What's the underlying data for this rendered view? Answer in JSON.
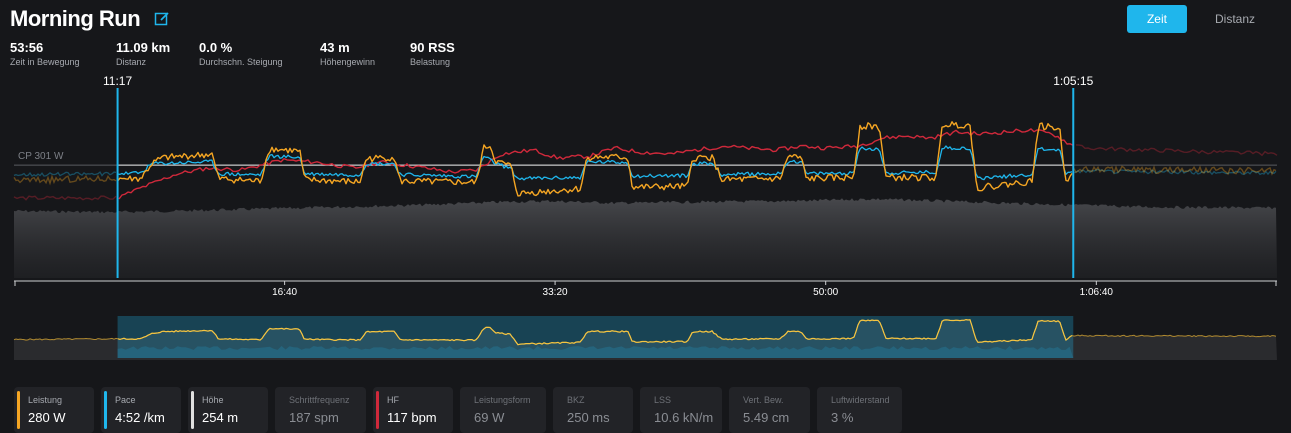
{
  "header": {
    "title": "Morning Run",
    "toggle": {
      "time_label": "Zeit",
      "distance_label": "Distanz"
    }
  },
  "stats": [
    {
      "value": "53:56",
      "label": "Zeit in Bewegung"
    },
    {
      "value": "11.09 km",
      "label": "Distanz"
    },
    {
      "value": "0.0 %",
      "label": "Durchschn. Steigung"
    },
    {
      "value": "43 m",
      "label": "Höhengewinn"
    },
    {
      "value": "90 RSS",
      "label": "Belastung"
    }
  ],
  "chart_data": {
    "type": "line",
    "x_unit": "elapsed time (min)",
    "x_range": [
      0,
      77.8
    ],
    "x_ticks": [
      {
        "value": 16.67,
        "label": "16:40"
      },
      {
        "value": 33.33,
        "label": "33:20"
      },
      {
        "value": 50.0,
        "label": "50:00"
      },
      {
        "value": 66.67,
        "label": "1:06:40"
      }
    ],
    "selection": {
      "start": 6.38,
      "end": 65.25,
      "start_label": "11:17",
      "end_label": "1:05:15"
    },
    "reference_line": {
      "label": "CP 301 W",
      "value": 301
    },
    "power_range_W": [
      0,
      480
    ],
    "series": [
      {
        "name": "Leistung",
        "color": "#f5a623",
        "unit": "W",
        "points": [
          [
            0,
            260
          ],
          [
            6.38,
            265
          ],
          [
            7.8,
            265
          ],
          [
            8.5,
            305
          ],
          [
            9.1,
            320
          ],
          [
            10.5,
            325
          ],
          [
            12.2,
            330
          ],
          [
            12.6,
            265
          ],
          [
            15.2,
            258
          ],
          [
            15.7,
            345
          ],
          [
            17.6,
            338
          ],
          [
            17.9,
            262
          ],
          [
            21.3,
            256
          ],
          [
            21.7,
            318
          ],
          [
            23.4,
            322
          ],
          [
            23.8,
            258
          ],
          [
            28.5,
            255
          ],
          [
            28.9,
            345
          ],
          [
            29.3,
            355
          ],
          [
            29.7,
            310
          ],
          [
            30.6,
            300
          ],
          [
            31.0,
            225
          ],
          [
            34.9,
            238
          ],
          [
            35.3,
            322
          ],
          [
            37.8,
            322
          ],
          [
            38.1,
            242
          ],
          [
            41.5,
            244
          ],
          [
            41.8,
            320
          ],
          [
            43.0,
            322
          ],
          [
            43.6,
            262
          ],
          [
            47.2,
            265
          ],
          [
            47.7,
            325
          ],
          [
            48.5,
            320
          ],
          [
            48.8,
            265
          ],
          [
            51.7,
            268
          ],
          [
            52.1,
            405
          ],
          [
            53.3,
            405
          ],
          [
            53.7,
            268
          ],
          [
            56.8,
            268
          ],
          [
            57.2,
            410
          ],
          [
            58.9,
            408
          ],
          [
            59.3,
            240
          ],
          [
            62.7,
            258
          ],
          [
            63.1,
            405
          ],
          [
            64.4,
            400
          ],
          [
            64.8,
            255
          ],
          [
            65.2,
            290
          ],
          [
            77.8,
            285
          ]
        ]
      },
      {
        "name": "Pace",
        "color": "#1fb6ec",
        "unit": "min/km",
        "points": [
          [
            0,
            276
          ],
          [
            6.38,
            278
          ],
          [
            7.8,
            280
          ],
          [
            8.5,
            305
          ],
          [
            12.2,
            310
          ],
          [
            12.6,
            278
          ],
          [
            15.2,
            275
          ],
          [
            15.7,
            325
          ],
          [
            17.6,
            322
          ],
          [
            17.9,
            278
          ],
          [
            21.3,
            275
          ],
          [
            21.7,
            305
          ],
          [
            23.4,
            305
          ],
          [
            23.8,
            276
          ],
          [
            28.5,
            270
          ],
          [
            28.9,
            325
          ],
          [
            29.7,
            305
          ],
          [
            30.6,
            292
          ],
          [
            31.0,
            265
          ],
          [
            34.9,
            268
          ],
          [
            35.3,
            310
          ],
          [
            37.8,
            308
          ],
          [
            38.1,
            272
          ],
          [
            41.5,
            273
          ],
          [
            41.8,
            305
          ],
          [
            43.0,
            306
          ],
          [
            43.6,
            276
          ],
          [
            47.2,
            278
          ],
          [
            47.7,
            312
          ],
          [
            48.5,
            310
          ],
          [
            48.8,
            278
          ],
          [
            51.7,
            280
          ],
          [
            52.1,
            345
          ],
          [
            53.3,
            345
          ],
          [
            53.7,
            280
          ],
          [
            56.8,
            282
          ],
          [
            57.2,
            348
          ],
          [
            58.9,
            346
          ],
          [
            59.3,
            266
          ],
          [
            62.7,
            276
          ],
          [
            63.1,
            345
          ],
          [
            64.4,
            342
          ],
          [
            64.8,
            275
          ],
          [
            65.2,
            285
          ],
          [
            77.8,
            280
          ]
        ]
      },
      {
        "name": "HF",
        "color": "#d0293b",
        "unit": "bpm",
        "points": [
          [
            0,
            100
          ],
          [
            6.38,
            100
          ],
          [
            7.8,
            105
          ],
          [
            10.0,
            112
          ],
          [
            12.0,
            115
          ],
          [
            14.0,
            114
          ],
          [
            16.5,
            119
          ],
          [
            18.5,
            118
          ],
          [
            21.0,
            115
          ],
          [
            22.5,
            118
          ],
          [
            24.5,
            116
          ],
          [
            27.0,
            113
          ],
          [
            28.5,
            114
          ],
          [
            30.0,
            122
          ],
          [
            32.0,
            124
          ],
          [
            33.5,
            120
          ],
          [
            35.5,
            121
          ],
          [
            37.0,
            125
          ],
          [
            38.5,
            123
          ],
          [
            40.5,
            122
          ],
          [
            42.0,
            124
          ],
          [
            43.8,
            126
          ],
          [
            45.0,
            125
          ],
          [
            47.0,
            124
          ],
          [
            48.5,
            126
          ],
          [
            50.0,
            125
          ],
          [
            52.0,
            126
          ],
          [
            53.5,
            130
          ],
          [
            55.0,
            131
          ],
          [
            56.5,
            130
          ],
          [
            58.0,
            133
          ],
          [
            59.5,
            132
          ],
          [
            61.0,
            133
          ],
          [
            62.5,
            134
          ],
          [
            64.0,
            132
          ],
          [
            65.25,
            126
          ],
          [
            66.0,
            125
          ],
          [
            77.8,
            122
          ]
        ]
      },
      {
        "name": "Höhe",
        "color": "#e0e0e0",
        "unit": "m",
        "points": [
          [
            0,
            244
          ],
          [
            5.0,
            243
          ],
          [
            6.38,
            243
          ],
          [
            10.0,
            244
          ],
          [
            15.0,
            246
          ],
          [
            20.0,
            248
          ],
          [
            25.0,
            250
          ],
          [
            30.0,
            253
          ],
          [
            33.0,
            254
          ],
          [
            37.0,
            252
          ],
          [
            42.0,
            253
          ],
          [
            48.0,
            254
          ],
          [
            53.0,
            256
          ],
          [
            57.0,
            254
          ],
          [
            61.0,
            252
          ],
          [
            65.25,
            250
          ],
          [
            70.0,
            248
          ],
          [
            77.8,
            247
          ]
        ]
      }
    ]
  },
  "metrics": [
    {
      "label": "Leistung",
      "value": "280 W",
      "color": "#f5a623"
    },
    {
      "label": "Pace",
      "value": "4:52 /km",
      "color": "#1fb6ec"
    },
    {
      "label": "Höhe",
      "value": "254 m",
      "color": "#e0e0e0"
    },
    {
      "label": "Schrittfrequenz",
      "value": "187 spm",
      "color": ""
    },
    {
      "label": "HF",
      "value": "117 bpm",
      "color": "#d0293b"
    },
    {
      "label": "Leistungsform",
      "value": "69 W",
      "color": ""
    },
    {
      "label": "BKZ",
      "value": "250 ms",
      "color": ""
    },
    {
      "label": "LSS",
      "value": "10.6 kN/m",
      "color": ""
    },
    {
      "label": "Vert. Bew.",
      "value": "5.49 cm",
      "color": ""
    },
    {
      "label": "Luftwiderstand",
      "value": "3 %",
      "color": ""
    }
  ]
}
